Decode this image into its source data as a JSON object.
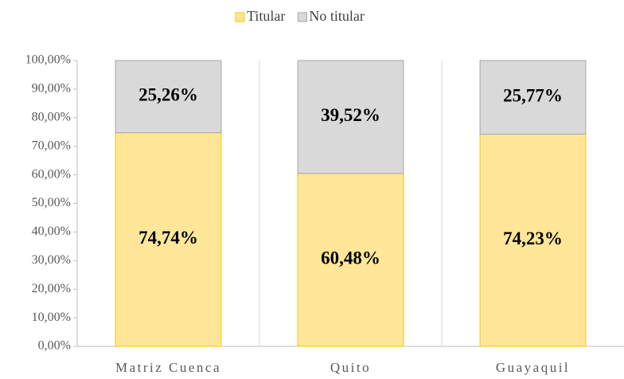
{
  "chart_data": {
    "type": "stacked_bar",
    "categories": [
      "Matriz Cuenca",
      "Quito",
      "Guayaquil"
    ],
    "series": [
      {
        "name": "Titular",
        "color": "#FFE699",
        "edge": "#FFC000",
        "values": [
          74.74,
          60.48,
          74.23
        ],
        "value_labels": [
          "74,74%",
          "60,48%",
          "74,23%"
        ]
      },
      {
        "name": "No titular",
        "color": "#D9D9D9",
        "edge": "#A6A6A6",
        "values": [
          25.26,
          39.52,
          25.77
        ],
        "value_labels": [
          "25,26%",
          "39,52%",
          "25,77%"
        ]
      }
    ],
    "ylim": [
      0,
      100
    ],
    "yticks": [
      {
        "value": 0,
        "label": "0,00%"
      },
      {
        "value": 10,
        "label": "10,00%"
      },
      {
        "value": 20,
        "label": "20,00%"
      },
      {
        "value": 30,
        "label": "30,00%"
      },
      {
        "value": 40,
        "label": "40,00%"
      },
      {
        "value": 50,
        "label": "50,00%"
      },
      {
        "value": 60,
        "label": "60,00%"
      },
      {
        "value": 70,
        "label": "70,00%"
      },
      {
        "value": 80,
        "label": "80,00%"
      },
      {
        "value": 90,
        "label": "90,00%"
      },
      {
        "value": 100,
        "label": "100,00%"
      }
    ],
    "legend": "top"
  }
}
